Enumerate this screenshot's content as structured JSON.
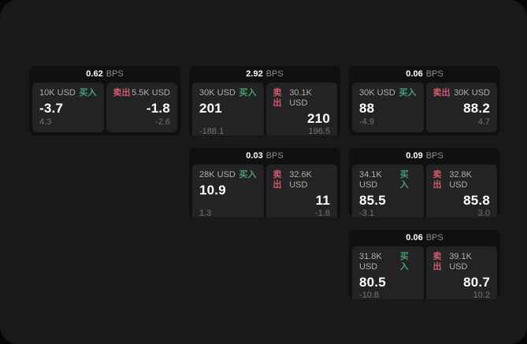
{
  "labels": {
    "bps": "BPS",
    "buy": "买入",
    "sell": "卖出"
  },
  "colors": {
    "buy": "#4a9e6d",
    "sell": "#d15a6c",
    "page_bg": "#19191b",
    "card_bg": "#101012",
    "panel_bg": "#232326"
  },
  "cards": [
    {
      "bps": "0.62",
      "row": 1,
      "col": 1,
      "buy": {
        "notional": "10K USD",
        "value": "-3.7",
        "sub": "4.3"
      },
      "sell": {
        "notional": "5.5K USD",
        "value": "-1.8",
        "sub": "-2.6"
      }
    },
    {
      "bps": "2.92",
      "row": 1,
      "col": 2,
      "buy": {
        "notional": "30K USD",
        "value": "201",
        "sub": "-188.1"
      },
      "sell": {
        "notional": "30.1K USD",
        "value": "210",
        "sub": "196.5"
      }
    },
    {
      "bps": "0.06",
      "row": 1,
      "col": 3,
      "buy": {
        "notional": "30K USD",
        "value": "88",
        "sub": "-4.9"
      },
      "sell": {
        "notional": "30K USD",
        "value": "88.2",
        "sub": "4.7"
      }
    },
    {
      "bps": "0.03",
      "row": 2,
      "col": 2,
      "buy": {
        "notional": "28K USD",
        "value": "10.9",
        "sub": "1.3"
      },
      "sell": {
        "notional": "32.6K USD",
        "value": "11",
        "sub": "-1.8"
      }
    },
    {
      "bps": "0.09",
      "row": 2,
      "col": 3,
      "buy": {
        "notional": "34.1K USD",
        "value": "85.5",
        "sub": "-3.1"
      },
      "sell": {
        "notional": "32.8K USD",
        "value": "85.8",
        "sub": "3.0"
      }
    },
    {
      "bps": "0.06",
      "row": 3,
      "col": 3,
      "buy": {
        "notional": "31.8K USD",
        "value": "80.5",
        "sub": "-10.8"
      },
      "sell": {
        "notional": "39.1K USD",
        "value": "80.7",
        "sub": "10.2"
      }
    }
  ]
}
